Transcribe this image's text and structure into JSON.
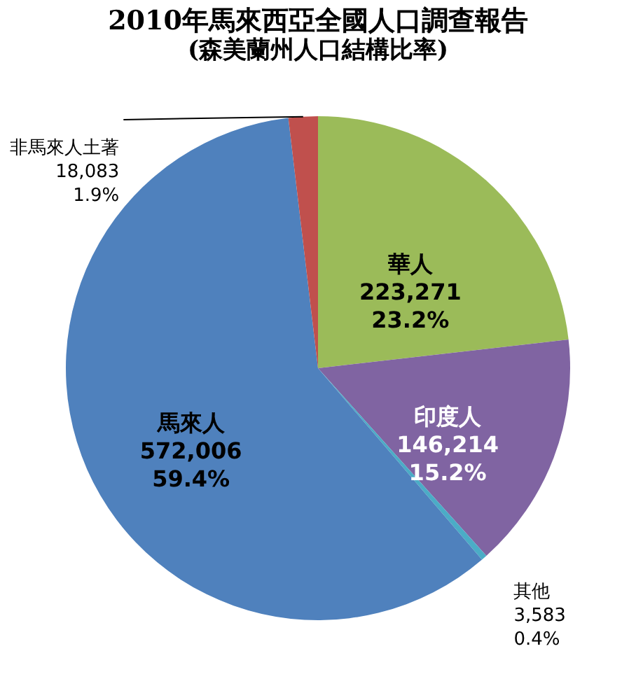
{
  "chart_data": {
    "type": "pie",
    "title": "2010年馬來西亞全國人口調查報告",
    "subtitle": "(森美蘭州人口結構比率)",
    "categories": [
      "華人",
      "印度人",
      "其他",
      "馬來人",
      "非馬來人土著"
    ],
    "values": [
      223271,
      146214,
      3583,
      572006,
      18083
    ],
    "colors": [
      "#9bbb59",
      "#8064a2",
      "#4bacc6",
      "#4f81bd",
      "#c0504d"
    ],
    "value_labels": [
      "223,271\n23.2%",
      "146,214\n15.2%",
      "3,583\n0.4%",
      "572,006\n59.4%",
      "18,083\n1.9%"
    ],
    "legend": false
  }
}
